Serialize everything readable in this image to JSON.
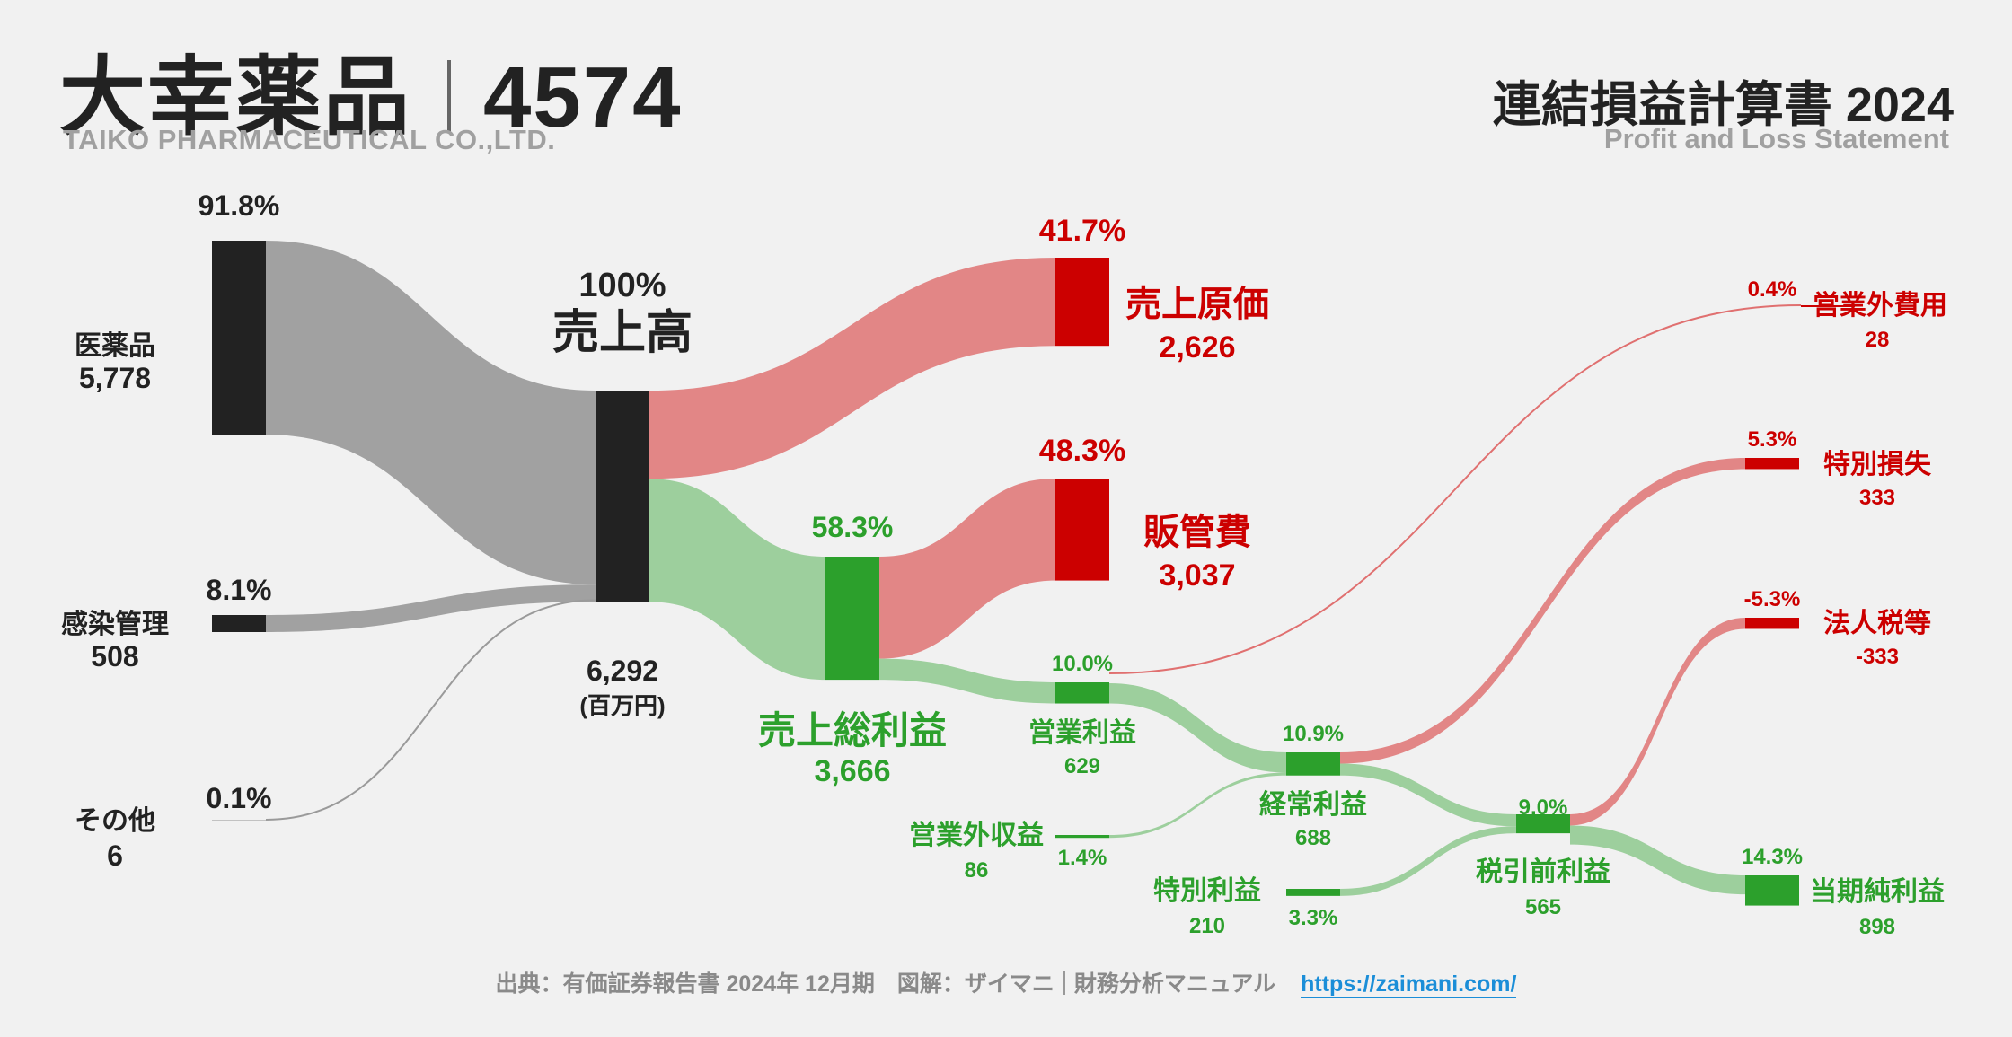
{
  "header": {
    "company": "大幸薬品",
    "code": "4574",
    "company_en": "TAIKO PHARMACEUTICAL CO.,LTD.",
    "statement": "連結損益計算書 2024",
    "statement_en": "Profit and Loss Statement"
  },
  "footer": {
    "source": "出典：有価証券報告書 2024年 12月期　図解：ザイマニ",
    "site": "財務分析マニュアル",
    "url": "https://zaimani.com/"
  },
  "colors": {
    "neutral_node": "#222222",
    "neutral_flow": "#a1a1a1",
    "profit_node": "#2ca02c",
    "profit_flow": "#9dcf9d",
    "cost_node": "#cc0000",
    "cost_flow": "#e28686",
    "thin_line_gray": "#9a9a9a",
    "thin_line_red": "#e07070"
  },
  "chart_data": {
    "type": "sankey",
    "unit": "(百万円)",
    "nodes": [
      {
        "id": "iyakuhin",
        "name": "医薬品",
        "value": "5,778",
        "pct": "91.8%",
        "kind": "neutral"
      },
      {
        "id": "kansen",
        "name": "感染管理",
        "value": "508",
        "pct": "8.1%",
        "kind": "neutral"
      },
      {
        "id": "sonota",
        "name": "その他",
        "value": "6",
        "pct": "0.1%",
        "kind": "neutral"
      },
      {
        "id": "revenue",
        "name": "売上高",
        "value": "6,292",
        "pct": "100%",
        "kind": "neutral"
      },
      {
        "id": "cogs",
        "name": "売上原価",
        "value": "2,626",
        "pct": "41.7%",
        "kind": "cost"
      },
      {
        "id": "gross",
        "name": "売上総利益",
        "value": "3,666",
        "pct": "58.3%",
        "kind": "profit"
      },
      {
        "id": "sga",
        "name": "販管費",
        "value": "3,037",
        "pct": "48.3%",
        "kind": "cost"
      },
      {
        "id": "op",
        "name": "営業利益",
        "value": "629",
        "pct": "10.0%",
        "kind": "profit"
      },
      {
        "id": "nonop_inc",
        "name": "営業外収益",
        "value": "86",
        "pct": "1.4%",
        "kind": "profit"
      },
      {
        "id": "nonop_exp",
        "name": "営業外費用",
        "value": "28",
        "pct": "0.4%",
        "kind": "cost"
      },
      {
        "id": "ordinary",
        "name": "経常利益",
        "value": "688",
        "pct": "10.9%",
        "kind": "profit"
      },
      {
        "id": "ext_gain",
        "name": "特別利益",
        "value": "210",
        "pct": "3.3%",
        "kind": "profit"
      },
      {
        "id": "ext_loss",
        "name": "特別損失",
        "value": "333",
        "pct": "5.3%",
        "kind": "cost"
      },
      {
        "id": "pretax",
        "name": "税引前利益",
        "value": "565",
        "pct": "9.0%",
        "kind": "profit"
      },
      {
        "id": "tax",
        "name": "法人税等",
        "value": "-333",
        "pct": "-5.3%",
        "kind": "cost"
      },
      {
        "id": "net",
        "name": "当期純利益",
        "value": "898",
        "pct": "14.3%",
        "kind": "profit"
      }
    ],
    "links": [
      {
        "source": "iyakuhin",
        "target": "revenue",
        "value": 5778
      },
      {
        "source": "kansen",
        "target": "revenue",
        "value": 508
      },
      {
        "source": "sonota",
        "target": "revenue",
        "value": 6
      },
      {
        "source": "revenue",
        "target": "cogs",
        "value": 2626
      },
      {
        "source": "revenue",
        "target": "gross",
        "value": 3666
      },
      {
        "source": "gross",
        "target": "sga",
        "value": 3037
      },
      {
        "source": "gross",
        "target": "op",
        "value": 629
      },
      {
        "source": "op",
        "target": "nonop_exp",
        "value": 28
      },
      {
        "source": "op",
        "target": "ordinary",
        "value": 601
      },
      {
        "source": "nonop_inc",
        "target": "ordinary",
        "value": 86
      },
      {
        "source": "ordinary",
        "target": "ext_loss",
        "value": 333
      },
      {
        "source": "ordinary",
        "target": "pretax",
        "value": 355
      },
      {
        "source": "ext_gain",
        "target": "pretax",
        "value": 210
      },
      {
        "source": "pretax",
        "target": "tax",
        "value": 333
      },
      {
        "source": "pretax",
        "target": "net",
        "value": 565
      }
    ]
  }
}
